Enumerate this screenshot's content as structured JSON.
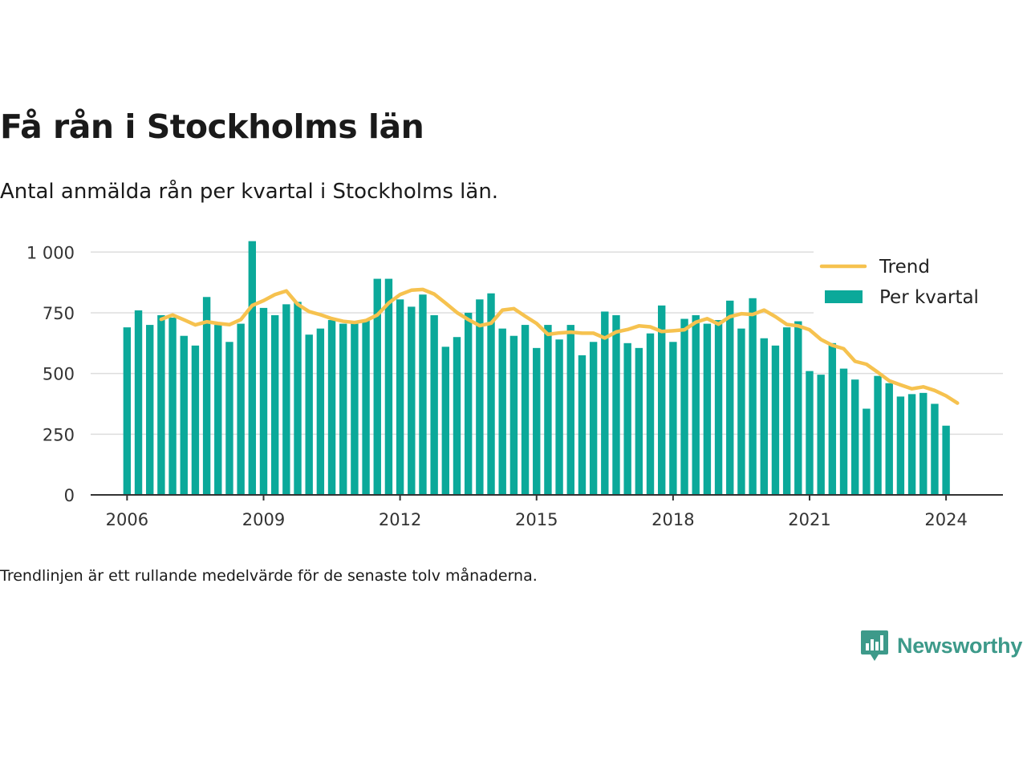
{
  "title": "Få rån i Stockholms län",
  "subtitle": "Antal anmälda rån per kvartal i Stockholms län.",
  "footnote": "Trendlinjen är ett rullande medelvärde för de senaste tolv månaderna.",
  "logo": {
    "name": "Newsworthy",
    "icon": "bar-chart-speech-icon"
  },
  "colors": {
    "bar": "#0ba99a",
    "trend": "#f6c24f",
    "grid": "#dddddd",
    "axis": "#333333"
  },
  "chart_data": {
    "type": "bar",
    "x_range": [
      2005.2,
      2025.25
    ],
    "ylim": [
      0,
      1100
    ],
    "y_ticks": [
      {
        "value": 0,
        "label": "0"
      },
      {
        "value": 250,
        "label": "250"
      },
      {
        "value": 500,
        "label": "500"
      },
      {
        "value": 750,
        "label": "750"
      },
      {
        "value": 1000,
        "label": "1 000"
      }
    ],
    "x_ticks": [
      {
        "value": 2006,
        "label": "2006"
      },
      {
        "value": 2009,
        "label": "2009"
      },
      {
        "value": 2012,
        "label": "2012"
      },
      {
        "value": 2015,
        "label": "2015"
      },
      {
        "value": 2018,
        "label": "2018"
      },
      {
        "value": 2021,
        "label": "2021"
      },
      {
        "value": 2024,
        "label": "2024"
      }
    ],
    "grid": true,
    "legend_position": "top-right",
    "series": [
      {
        "name": "Per kvartal",
        "type": "bar",
        "start_year": 2006,
        "values": [
          690,
          760,
          700,
          740,
          730,
          655,
          615,
          815,
          700,
          630,
          705,
          1045,
          770,
          740,
          785,
          795,
          660,
          685,
          720,
          705,
          705,
          720,
          890,
          890,
          805,
          775,
          825,
          740,
          610,
          650,
          750,
          805,
          830,
          685,
          655,
          700,
          605,
          700,
          640,
          700,
          575,
          630,
          755,
          740,
          625,
          605,
          665,
          780,
          630,
          725,
          740,
          705,
          720,
          800,
          685,
          810,
          645,
          615,
          690,
          715,
          510,
          495,
          625,
          520,
          475,
          355,
          490,
          460,
          405,
          415,
          420,
          375,
          285
        ]
      },
      {
        "name": "Trend",
        "type": "line",
        "start_year": 2006.75,
        "values": [
          723,
          741,
          721,
          700,
          713,
          706,
          701,
          722,
          780,
          800,
          825,
          840,
          785,
          755,
          742,
          726,
          715,
          710,
          718,
          741,
          790,
          825,
          843,
          846,
          827,
          790,
          751,
          722,
          697,
          707,
          761,
          767,
          736,
          706,
          661,
          667,
          670,
          666,
          666,
          646,
          671,
          681,
          696,
          692,
          673,
          676,
          680,
          711,
          726,
          703,
          734,
          746,
          743,
          761,
          734,
          702,
          696,
          680,
          640,
          616,
          602,
          550,
          538,
          505,
          470,
          453,
          437,
          445,
          430,
          408,
          378
        ]
      }
    ]
  }
}
